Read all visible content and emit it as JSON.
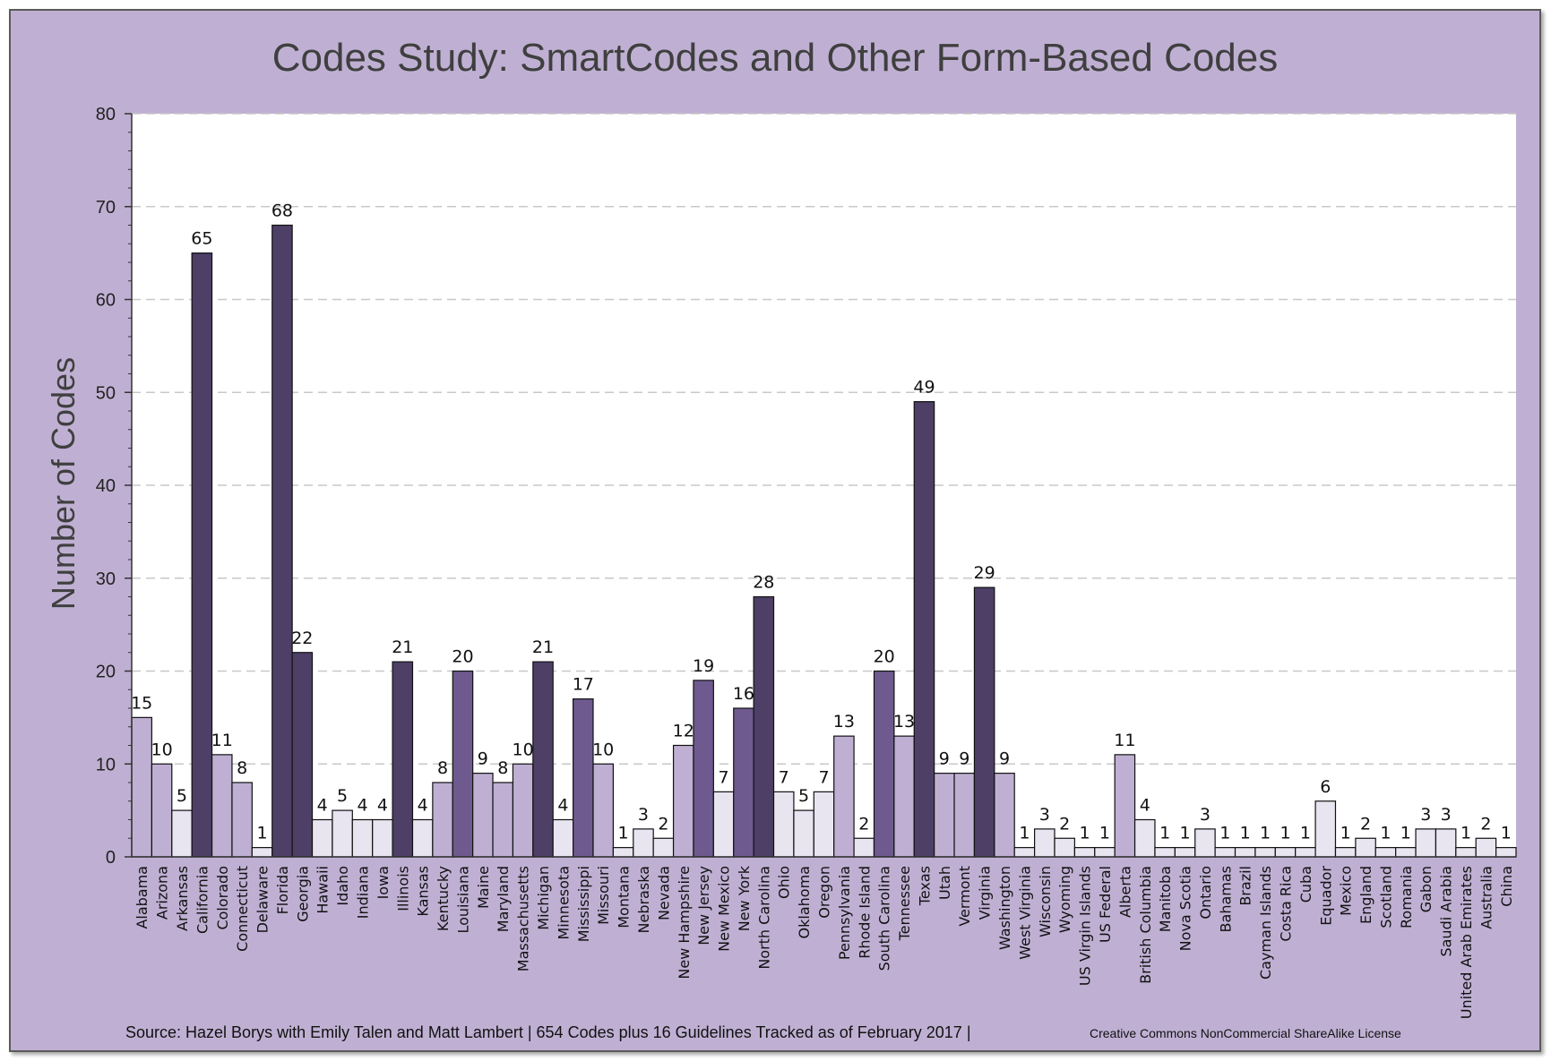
{
  "chart_data": {
    "type": "bar",
    "title": "Codes Study: SmartCodes and Other Form-Based Codes",
    "ylabel": "Number of Codes",
    "xlabel": "",
    "ylim": [
      0,
      80
    ],
    "yticks": [
      0,
      10,
      20,
      30,
      40,
      50,
      60,
      70,
      80
    ],
    "grid": true,
    "categories": [
      "Alabama",
      "Arizona",
      "Arkansas",
      "California",
      "Colorado",
      "Connecticut",
      "Delaware",
      "Florida",
      "Georgia",
      "Hawaii",
      "Idaho",
      "Indiana",
      "Iowa",
      "Illinois",
      "Kansas",
      "Kentucky",
      "Louisiana",
      "Maine",
      "Maryland",
      "Massachusetts",
      "Michigan",
      "Minnesota",
      "Mississippi",
      "Missouri",
      "Montana",
      "Nebraska",
      "Nevada",
      "New Hampshire",
      "New Jersey",
      "New Mexico",
      "New York",
      "North Carolina",
      "Ohio",
      "Oklahoma",
      "Oregon",
      "Pennsylvania",
      "Rhode Island",
      "South Carolina",
      "Tennessee",
      "Texas",
      "Utah",
      "Vermont",
      "Virginia",
      "Washington",
      "West Virginia",
      "Wisconsin",
      "Wyoming",
      "US Virgin Islands",
      "US Federal",
      "Alberta",
      "British Columbia",
      "Manitoba",
      "Nova Scotia",
      "Ontario",
      "Bahamas",
      "Brazil",
      "Cayman Islands",
      "Costa Rica",
      "Cuba",
      "Equador",
      "Mexico",
      "England",
      "Scotland",
      "Romania",
      "Gabon",
      "Saudi Arabia",
      "United Arab Emirates",
      "Australia",
      "China"
    ],
    "values": [
      15,
      10,
      5,
      65,
      11,
      8,
      1,
      68,
      22,
      4,
      5,
      4,
      4,
      21,
      4,
      8,
      20,
      9,
      8,
      10,
      21,
      4,
      17,
      10,
      1,
      3,
      2,
      12,
      19,
      7,
      16,
      28,
      7,
      5,
      7,
      13,
      2,
      20,
      13,
      49,
      9,
      9,
      29,
      9,
      1,
      3,
      2,
      1,
      1,
      11,
      4,
      1,
      1,
      3,
      1,
      1,
      1,
      1,
      1,
      6,
      1,
      2,
      1,
      1,
      3,
      3,
      1,
      2,
      1
    ],
    "colors": {
      "very_dark": "#4d3f66",
      "dark": "#6e5a8e",
      "medium": "#bfb0d3",
      "light": "#e8e4f0",
      "background": "#bfb0d3",
      "plot": "#ffffff"
    }
  },
  "source": {
    "main": "Source: Hazel Borys with Emily Talen and Matt Lambert | 654 Codes plus 16 Guidelines Tracked as of February 2017 |",
    "license": "Creative Commons NonCommercial ShareAlike License"
  }
}
